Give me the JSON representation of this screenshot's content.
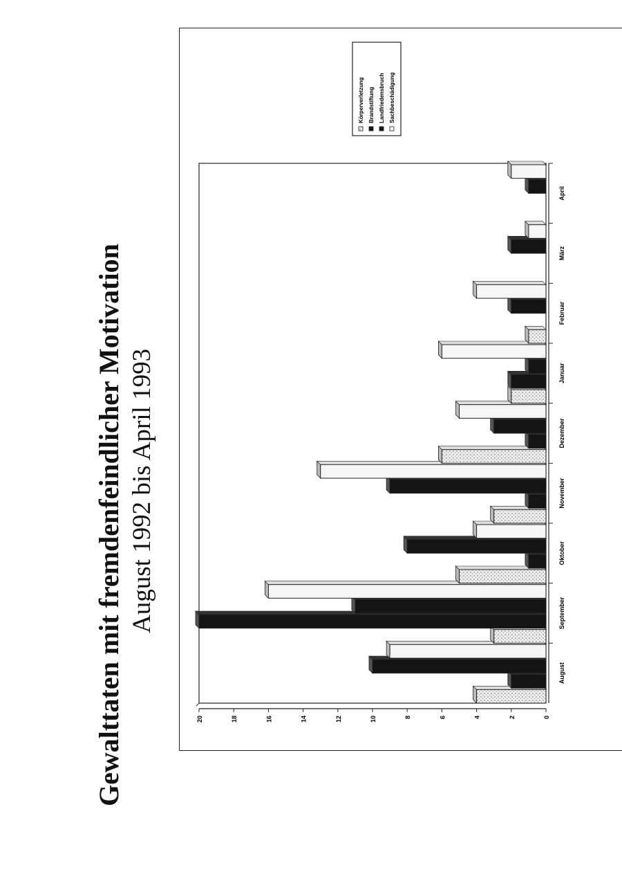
{
  "title": "Gewalttaten mit fremdenfeindlicher Motivation",
  "subtitle": "August 1992 bis April 1993",
  "chart_data": {
    "type": "bar",
    "orientation": "vertical",
    "categories": [
      "August",
      "September",
      "Oktober",
      "November",
      "Dezember",
      "Januar",
      "Februar",
      "März",
      "April"
    ],
    "series": [
      {
        "name": "Körperverletzung",
        "values": [
          4,
          3,
          5,
          3,
          6,
          2,
          1,
          0,
          0
        ]
      },
      {
        "name": "Brandstiftung",
        "values": [
          2,
          20,
          1,
          1,
          1,
          2,
          0,
          0,
          0
        ]
      },
      {
        "name": "Landfriedensbruch",
        "values": [
          10,
          11,
          8,
          9,
          3,
          1,
          2,
          2,
          1
        ]
      },
      {
        "name": "Sachbeschädigung",
        "values": [
          9,
          16,
          4,
          13,
          5,
          6,
          4,
          1,
          2
        ]
      }
    ],
    "series_colors": [
      "#e4e4e4",
      "#141414",
      "#141414",
      "#f6f6f6"
    ],
    "ylim": [
      0,
      20
    ],
    "ytick_labels": [
      "0",
      "2",
      "4",
      "6",
      "8",
      "10",
      "12",
      "14",
      "16",
      "18",
      "20"
    ],
    "legend_position": "top-right",
    "grid": false,
    "render_3d": true
  }
}
